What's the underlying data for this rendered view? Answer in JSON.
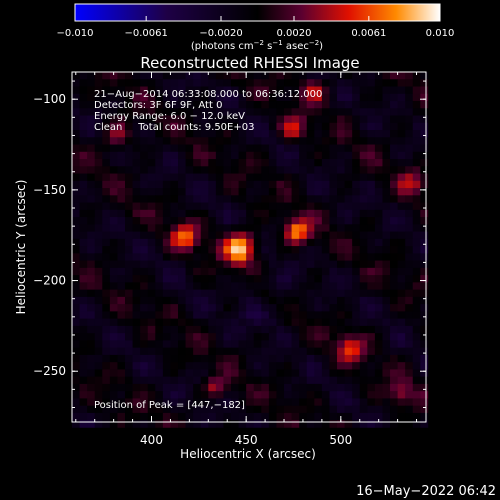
{
  "chart_data": {
    "type": "heatmap",
    "title": "Reconstructed RHESSI Image",
    "xlabel": "Heliocentric X (arcsec)",
    "ylabel": "Heliocentric Y (arcsec)",
    "xlim": [
      358,
      545
    ],
    "ylim": [
      -278,
      -85
    ],
    "x_ticks": [
      400,
      450,
      500
    ],
    "y_ticks": [
      -100,
      -150,
      -200,
      -250
    ],
    "colorbar": {
      "min": -0.01,
      "max": 0.01,
      "tick_labels": [
        "−0.010",
        "−0.0061",
        "−0.0020",
        "0.0020",
        "0.0061",
        "0.010"
      ],
      "tick_values": [
        -0.01,
        -0.0061,
        -0.002,
        0.002,
        0.0061,
        0.01
      ],
      "units_label": "(photons cm",
      "units_exp1": "−2",
      "units_mid": " s",
      "units_exp2": "−1",
      "units_mid2": " asec",
      "units_exp3": "−2",
      "units_end": ")"
    },
    "annotations": [
      "21−Aug−2014 06:33:08.000 to 06:36:12.000",
      "Detectors: 3F 6F 9F, Att 0",
      "Energy Range: 6.0 − 12.0 keV",
      "Clean     Total counts: 9.50E+03"
    ],
    "peak_label": "Position of Peak = [447,−182]",
    "sources": [
      {
        "x": 447,
        "y": -182,
        "peak": 0.01,
        "sigma": 6
      },
      {
        "x": 477,
        "y": -173,
        "peak": 0.008,
        "sigma": 5
      },
      {
        "x": 418,
        "y": -176,
        "peak": 0.0068,
        "sigma": 5
      },
      {
        "x": 505,
        "y": -237,
        "peak": 0.006,
        "sigma": 5
      },
      {
        "x": 475,
        "y": -116,
        "peak": 0.005,
        "sigma": 5
      },
      {
        "x": 486,
        "y": -95,
        "peak": 0.0045,
        "sigma": 5
      },
      {
        "x": 538,
        "y": -146,
        "peak": 0.004,
        "sigma": 5
      },
      {
        "x": 382,
        "y": -120,
        "peak": 0.004,
        "sigma": 6
      },
      {
        "x": 434,
        "y": -259,
        "peak": 0.0045,
        "sigma": 4
      },
      {
        "x": 532,
        "y": -262,
        "peak": 0.004,
        "sigma": 5
      }
    ]
  },
  "footer_date": "16−May−2022 06:42"
}
